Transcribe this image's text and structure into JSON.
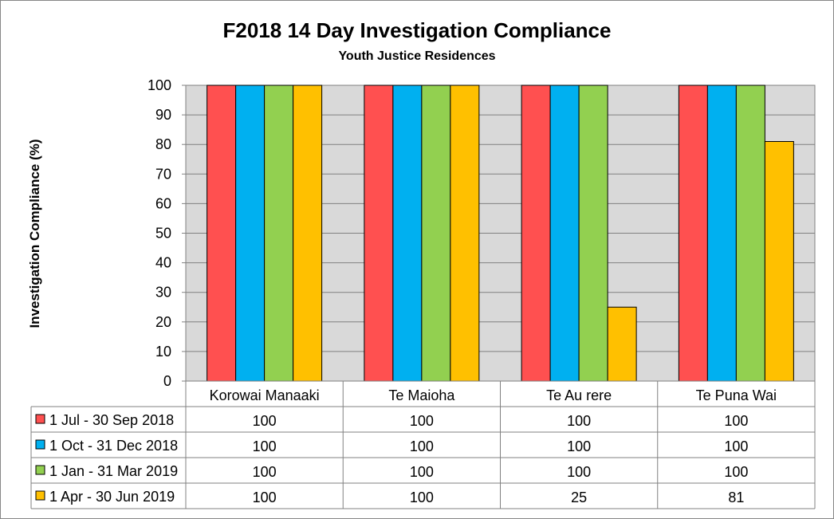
{
  "chart_data": {
    "type": "bar",
    "title": "F2018 14 Day Investigation Compliance",
    "subtitle": "Youth Justice Residences",
    "ylabel": "Investigation Compliance (%)",
    "xlabel": "",
    "ylim": [
      0,
      100
    ],
    "yticks": [
      0,
      10,
      20,
      30,
      40,
      50,
      60,
      70,
      80,
      90,
      100
    ],
    "grid": true,
    "legend_placement": "data-table-left",
    "categories": [
      "Korowai Manaaki",
      "Te Maioha",
      "Te Au rere",
      "Te Puna Wai"
    ],
    "series": [
      {
        "name": "1 Jul - 30 Sep 2018",
        "color": "#FF5050",
        "values": [
          100,
          100,
          100,
          100
        ]
      },
      {
        "name": "1 Oct - 31 Dec 2018",
        "color": "#00B0F0",
        "values": [
          100,
          100,
          100,
          100
        ]
      },
      {
        "name": "1 Jan - 31 Mar 2019",
        "color": "#92D050",
        "values": [
          100,
          100,
          100,
          100
        ]
      },
      {
        "name": "1 Apr - 30 Jun 2019",
        "color": "#FFC000",
        "values": [
          100,
          100,
          25,
          81
        ]
      }
    ],
    "plot_background": "#D9D9D9",
    "gridline_color": "#808080"
  }
}
